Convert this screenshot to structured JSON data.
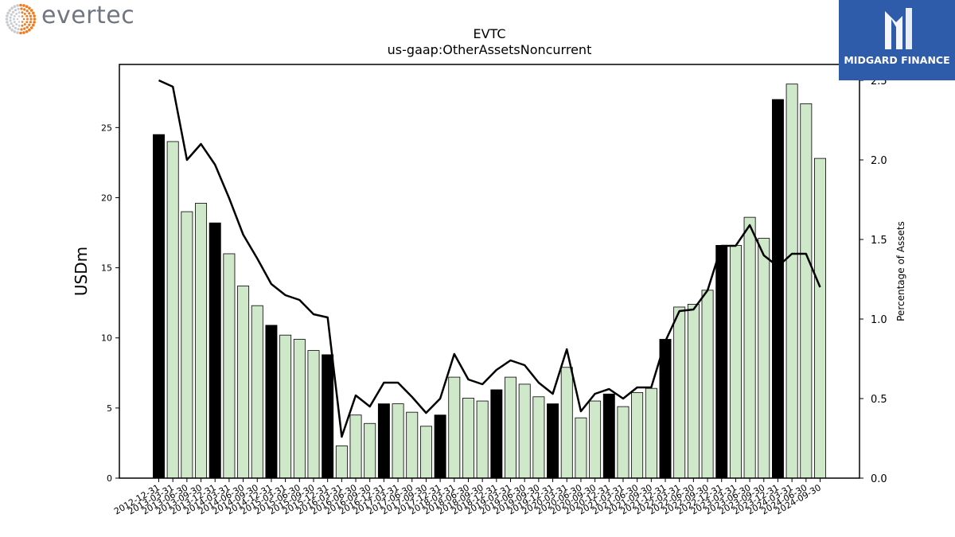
{
  "brand": {
    "left_logo_text": "evertec",
    "right_logo_text": "MIDGARD FINANCE"
  },
  "chart_data": {
    "type": "bar",
    "title": "EVTC",
    "subtitle": "us-gaap:OtherAssetsNoncurrent",
    "ylabel": "USDm",
    "y2label": "Percentage of Assets",
    "ylim": [
      0,
      29.5
    ],
    "y2lim": [
      0,
      2.6
    ],
    "yticks": [
      0,
      5,
      10,
      15,
      20,
      25
    ],
    "y2ticks": [
      "0.0",
      "0.5",
      "1.0",
      "1.5",
      "2.0",
      "2.5"
    ],
    "colors": {
      "q4_bar": "#000000",
      "other_bar": "#cfe8c9",
      "line": "#000000",
      "edge": "#000000"
    },
    "categories": [
      "2012-12-31",
      "2013-03-31",
      "2013-06-30",
      "2013-09-30",
      "2013-12-31",
      "2014-03-31",
      "2014-06-30",
      "2014-09-30",
      "2014-12-31",
      "2015-03-31",
      "2015-06-30",
      "2015-09-30",
      "2015-12-31",
      "2016-03-31",
      "2016-06-30",
      "2016-09-30",
      "2016-12-31",
      "2017-03-31",
      "2017-06-30",
      "2017-09-30",
      "2017-12-31",
      "2018-03-31",
      "2018-06-30",
      "2018-09-30",
      "2018-12-31",
      "2019-03-31",
      "2019-06-30",
      "2019-09-30",
      "2019-12-31",
      "2020-03-31",
      "2020-06-30",
      "2020-09-30",
      "2020-12-31",
      "2021-03-31",
      "2021-06-30",
      "2021-09-30",
      "2021-12-31",
      "2022-03-31",
      "2022-06-30",
      "2022-09-30",
      "2022-12-31",
      "2023-03-31",
      "2023-06-30",
      "2023-09-30",
      "2023-12-31",
      "2024-03-31",
      "2024-06-30",
      "2024-09-30"
    ],
    "series": [
      {
        "type": "bar",
        "axis": "left",
        "values": [
          24.5,
          24.0,
          19.0,
          19.6,
          18.2,
          16.0,
          13.7,
          12.3,
          10.9,
          10.2,
          9.9,
          9.1,
          8.8,
          2.3,
          4.5,
          3.9,
          5.3,
          5.3,
          4.7,
          3.7,
          4.5,
          7.2,
          5.7,
          5.5,
          6.3,
          7.2,
          6.7,
          5.8,
          5.3,
          7.9,
          4.3,
          5.5,
          6.0,
          5.1,
          6.1,
          6.4,
          9.9,
          12.2,
          12.4,
          13.4,
          16.6,
          16.6,
          18.6,
          17.1,
          27.0,
          28.1,
          26.7,
          22.8
        ]
      },
      {
        "type": "line",
        "axis": "right",
        "values": [
          2.5,
          2.46,
          2.0,
          2.1,
          1.97,
          1.76,
          1.53,
          1.38,
          1.22,
          1.15,
          1.12,
          1.03,
          1.01,
          0.26,
          0.52,
          0.45,
          0.6,
          0.6,
          0.51,
          0.41,
          0.5,
          0.78,
          0.62,
          0.59,
          0.68,
          0.74,
          0.71,
          0.6,
          0.53,
          0.81,
          0.42,
          0.53,
          0.56,
          0.5,
          0.57,
          0.57,
          0.86,
          1.05,
          1.06,
          1.18,
          1.46,
          1.46,
          1.59,
          1.4,
          1.33,
          1.41,
          1.41,
          1.2
        ]
      }
    ]
  }
}
